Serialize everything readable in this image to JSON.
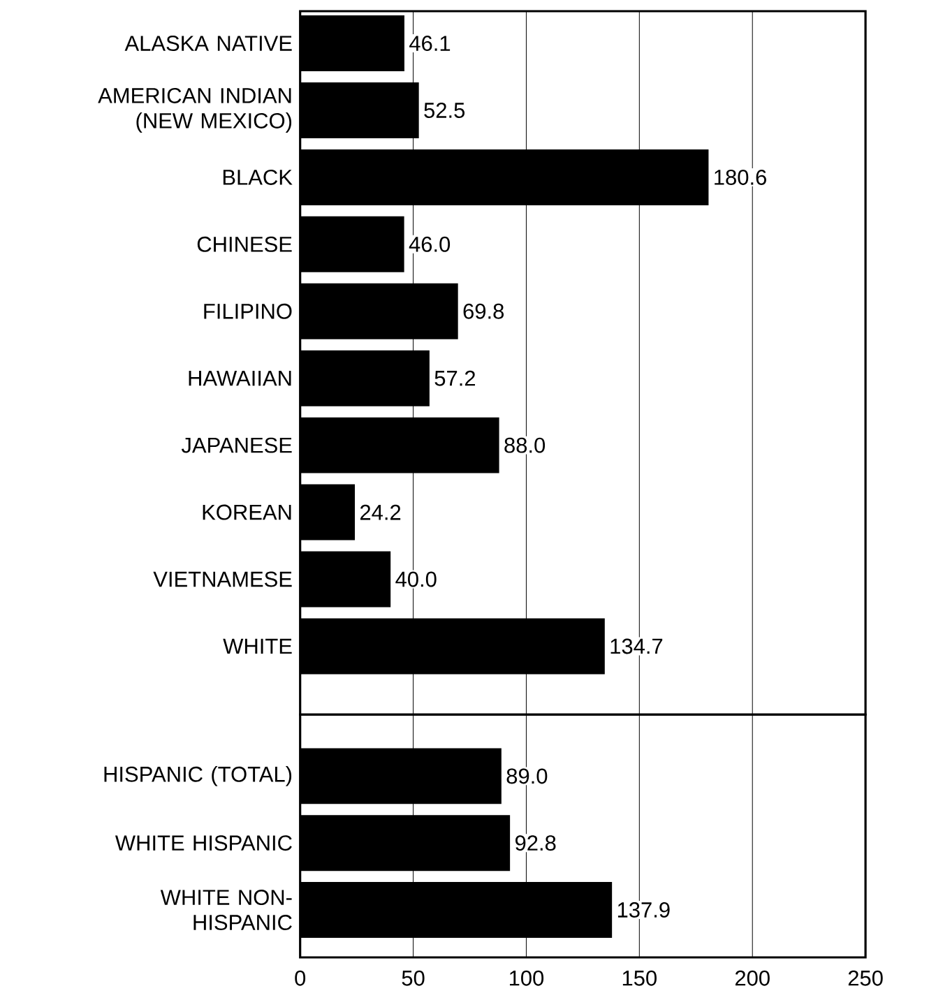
{
  "chart_data": [
    {
      "type": "bar",
      "orientation": "horizontal",
      "categories": [
        "ALASKA NATIVE",
        "AMERICAN INDIAN (NEW MEXICO)",
        "BLACK",
        "CHINESE",
        "FILIPINO",
        "HAWAIIAN",
        "JAPANESE",
        "KOREAN",
        "VIETNAMESE",
        "WHITE"
      ],
      "values": [
        46.1,
        52.5,
        180.6,
        46.0,
        69.8,
        57.2,
        88.0,
        24.2,
        40.0,
        134.7
      ],
      "value_labels": [
        "46.1",
        "52.5",
        "180.6",
        "46.0",
        "69.8",
        "57.2",
        "88.0",
        "24.2",
        "40.0",
        "134.7"
      ],
      "color": "#000000",
      "xlim": [
        0,
        250
      ],
      "xticks": [
        0,
        50,
        100,
        150,
        200,
        250
      ],
      "grid": "x",
      "tick_labels": "y"
    },
    {
      "type": "bar",
      "orientation": "horizontal",
      "categories": [
        "HISPANIC (TOTAL)",
        "WHITE HISPANIC",
        "WHITE NON-HISPANIC"
      ],
      "values": [
        89.0,
        92.8,
        137.9
      ],
      "value_labels": [
        "89.0",
        "92.8",
        "137.9"
      ],
      "color": "#000000",
      "xlim": [
        0,
        250
      ],
      "xticks": [
        0,
        50,
        100,
        150,
        200,
        250
      ],
      "grid": "x"
    }
  ]
}
